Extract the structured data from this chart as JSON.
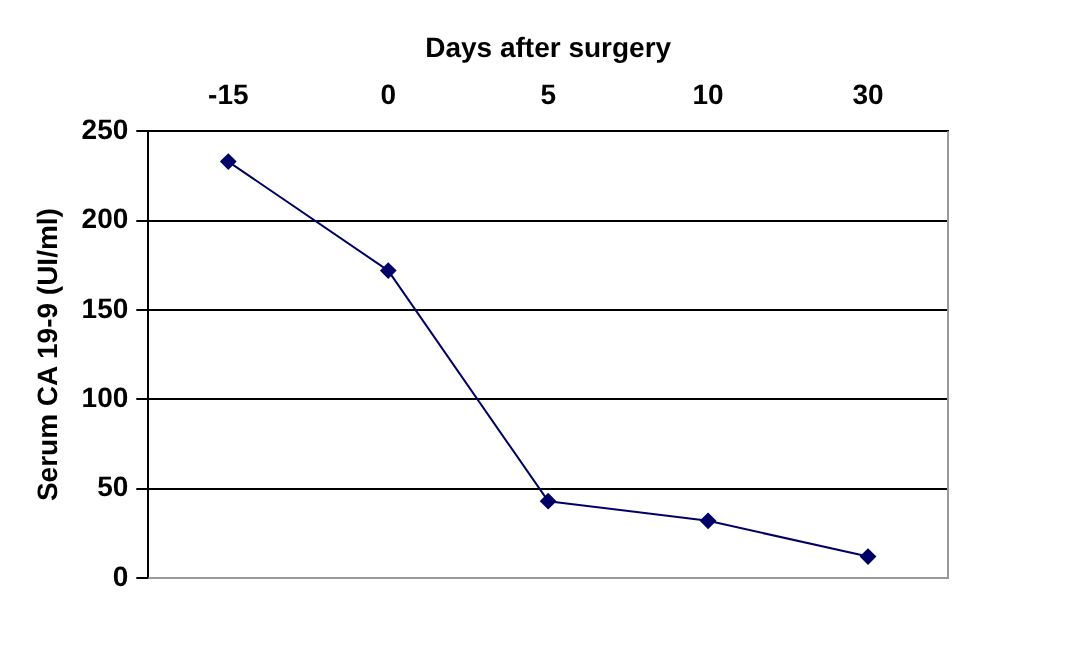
{
  "chart_data": {
    "type": "line",
    "xlabel": "Days after surgery",
    "ylabel": "Serum CA 19-9 (UI/ml)",
    "categories": [
      "-15",
      "0",
      "5",
      "10",
      "30"
    ],
    "series": [
      {
        "color": "#000066",
        "values": [
          233,
          172,
          43,
          32,
          12
        ]
      }
    ],
    "ylim": [
      0,
      250
    ],
    "yticks": [
      0,
      50,
      100,
      150,
      200,
      250
    ],
    "grid": "y",
    "marker": "diamond",
    "line_style": "solid",
    "legend": false
  }
}
